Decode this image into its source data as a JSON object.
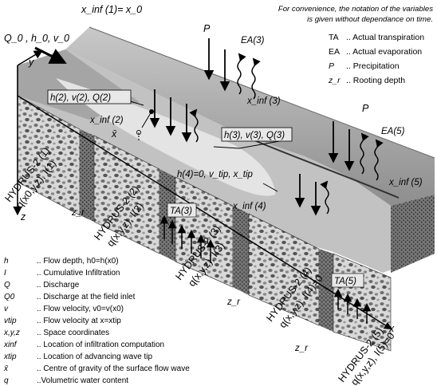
{
  "note": {
    "line1": "For convenience, the notation of the variables",
    "line2": "is given without dependance on time."
  },
  "key": [
    {
      "symbol": "TA",
      "text": ".. Actual transpiration"
    },
    {
      "symbol": "EA",
      "text": ".. Actual evaporation"
    },
    {
      "symbol": "P",
      "text": ".. Precipitation"
    },
    {
      "symbol": "z_r",
      "text": ".. Rooting depth"
    }
  ],
  "labels": {
    "xinf1": "x_inf (1)= x_0",
    "inflow": "Q_0 , h_0, v_0",
    "y_axis": "y",
    "z_axis": "z",
    "x_axis": "x",
    "state2": "h(2), v(2), Q(2)",
    "state3": "h(3), v(3), Q(3)",
    "state4": "h(4)=0, v_tip, x_tip",
    "xinf2": "x_inf (2)",
    "xinf3": "x_inf (3)",
    "xinf4": "x_inf (4)",
    "xinf5": "x_inf (5)",
    "xbar": "x̄",
    "p1": "P",
    "p2": "P",
    "ea3": "EA(3)",
    "ea5": "EA(5)",
    "ta3": "TA(3)",
    "ta5": "TA(5)",
    "zr1": "z_r",
    "zr2": "z_r",
    "zr3": "z_r"
  },
  "hydrus": [
    {
      "title": "HYDRUS-2 (1)",
      "formula": "q(x0,y,z), I(1)"
    },
    {
      "title": "HYDRUS-2 (2)",
      "formula": "q(x,y,z), I(2)"
    },
    {
      "title": "HYDRUS-2 (3)",
      "formula": "q(x,y,z), I(3)"
    },
    {
      "title": "HYDRUS-2 (4)",
      "formula": "q(x,y,z), I(4)=0"
    },
    {
      "title": "HYDRUS-2 (5)",
      "formula": "q(x,y,z), I(5)=0"
    }
  ],
  "legend": [
    {
      "symbol": "h",
      "text": ".. Flow depth, h0=h(x0)"
    },
    {
      "symbol": "I",
      "text": ".. Cumulative Infiltration"
    },
    {
      "symbol": "Q",
      "text": ".. Discharge"
    },
    {
      "symbol": "Q0",
      "text": ".. Discharge at the field inlet"
    },
    {
      "symbol": "v",
      "text": ".. Flow velocity, v0=v(x0)"
    },
    {
      "symbol": "vtip",
      "text": ".. Flow velocity at x=xtip"
    },
    {
      "symbol": "x,y,z",
      "text": ".. Space coordinates"
    },
    {
      "symbol": "xinf",
      "text": ".. Location of infiltration computation"
    },
    {
      "symbol": "xtip",
      "text": ".. Location of advancing wave tip"
    },
    {
      "symbol": "x̄",
      "text": ".. Centre of gravity of the surface flow wave"
    },
    {
      "symbol": "q",
      "text": "..Volumetric water content"
    }
  ]
}
